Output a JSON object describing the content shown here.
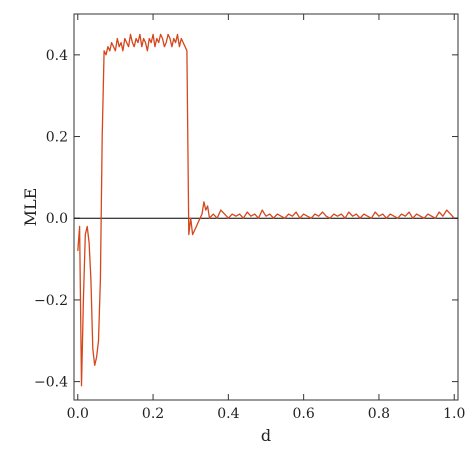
{
  "chart_data": {
    "type": "line",
    "title": "",
    "xlabel": "d",
    "ylabel": "MLE",
    "xlim": [
      -0.01,
      1.01
    ],
    "ylim": [
      -0.445,
      0.5
    ],
    "grid": false,
    "zero_line": true,
    "x_ticks": [
      {
        "value": 0.0,
        "label": "0.0"
      },
      {
        "value": 0.2,
        "label": "0.2"
      },
      {
        "value": 0.4,
        "label": "0.4"
      },
      {
        "value": 0.6,
        "label": "0.6"
      },
      {
        "value": 0.8,
        "label": "0.8"
      },
      {
        "value": 1.0,
        "label": "1.0"
      }
    ],
    "y_ticks": [
      {
        "value": 0.4,
        "label": "0.4"
      },
      {
        "value": 0.2,
        "label": "0.2"
      },
      {
        "value": 0.0,
        "label": "0.0"
      },
      {
        "value": -0.2,
        "label": "−0.2"
      },
      {
        "value": -0.4,
        "label": "−0.4"
      }
    ],
    "colors": {
      "series": "#d4471c",
      "axis": "#000000",
      "frame": "#333333"
    },
    "series": [
      {
        "x": [
          0.0,
          0.005,
          0.01,
          0.015,
          0.02,
          0.025,
          0.03,
          0.035,
          0.04,
          0.045,
          0.05,
          0.055,
          0.06,
          0.065,
          0.07,
          0.075,
          0.08,
          0.085,
          0.09,
          0.095,
          0.1,
          0.105,
          0.11,
          0.115,
          0.12,
          0.125,
          0.13,
          0.135,
          0.14,
          0.145,
          0.15,
          0.155,
          0.16,
          0.165,
          0.17,
          0.175,
          0.18,
          0.185,
          0.19,
          0.195,
          0.2,
          0.205,
          0.21,
          0.215,
          0.22,
          0.225,
          0.23,
          0.235,
          0.24,
          0.245,
          0.25,
          0.255,
          0.26,
          0.265,
          0.27,
          0.275,
          0.28,
          0.285,
          0.29,
          0.295,
          0.3,
          0.305,
          0.31,
          0.315,
          0.32,
          0.325,
          0.33,
          0.335,
          0.34,
          0.345,
          0.35,
          0.36,
          0.37,
          0.38,
          0.39,
          0.4,
          0.41,
          0.42,
          0.43,
          0.44,
          0.45,
          0.46,
          0.47,
          0.48,
          0.49,
          0.5,
          0.51,
          0.52,
          0.53,
          0.54,
          0.55,
          0.56,
          0.57,
          0.58,
          0.59,
          0.6,
          0.61,
          0.62,
          0.63,
          0.64,
          0.65,
          0.66,
          0.67,
          0.68,
          0.69,
          0.7,
          0.71,
          0.72,
          0.73,
          0.74,
          0.75,
          0.76,
          0.77,
          0.78,
          0.79,
          0.8,
          0.81,
          0.82,
          0.83,
          0.84,
          0.85,
          0.86,
          0.87,
          0.88,
          0.89,
          0.9,
          0.91,
          0.92,
          0.93,
          0.94,
          0.95,
          0.96,
          0.97,
          0.98,
          0.99,
          1.0
        ],
        "y": [
          -0.08,
          -0.02,
          -0.41,
          -0.2,
          -0.04,
          -0.02,
          -0.06,
          -0.15,
          -0.32,
          -0.36,
          -0.34,
          -0.3,
          -0.15,
          0.2,
          0.41,
          0.4,
          0.42,
          0.41,
          0.43,
          0.42,
          0.41,
          0.44,
          0.42,
          0.43,
          0.41,
          0.44,
          0.43,
          0.42,
          0.45,
          0.43,
          0.42,
          0.44,
          0.43,
          0.45,
          0.42,
          0.44,
          0.43,
          0.41,
          0.44,
          0.43,
          0.45,
          0.42,
          0.44,
          0.43,
          0.45,
          0.44,
          0.42,
          0.43,
          0.45,
          0.44,
          0.42,
          0.44,
          0.43,
          0.45,
          0.42,
          0.44,
          0.43,
          0.42,
          0.41,
          -0.04,
          0.0,
          -0.04,
          -0.03,
          -0.02,
          -0.01,
          0.0,
          0.01,
          0.04,
          0.02,
          0.03,
          0.0,
          0.01,
          0.0,
          0.02,
          0.01,
          0.0,
          0.01,
          0.005,
          0.01,
          0.0,
          0.015,
          0.005,
          0.01,
          0.0,
          0.02,
          0.005,
          0.01,
          0.0,
          0.01,
          0.005,
          0.0,
          0.01,
          0.005,
          0.015,
          0.0,
          0.01,
          0.005,
          0.0,
          0.01,
          0.005,
          0.015,
          0.005,
          0.0,
          0.01,
          0.005,
          0.01,
          0.0,
          0.015,
          0.005,
          0.01,
          0.0,
          0.01,
          0.005,
          0.0,
          0.015,
          0.005,
          0.01,
          0.0,
          0.01,
          0.005,
          0.0,
          0.01,
          0.005,
          0.015,
          0.0,
          0.01,
          0.005,
          0.0,
          0.01,
          0.005,
          0.0,
          0.015,
          0.005,
          0.02,
          0.01,
          0.0
        ]
      }
    ]
  }
}
